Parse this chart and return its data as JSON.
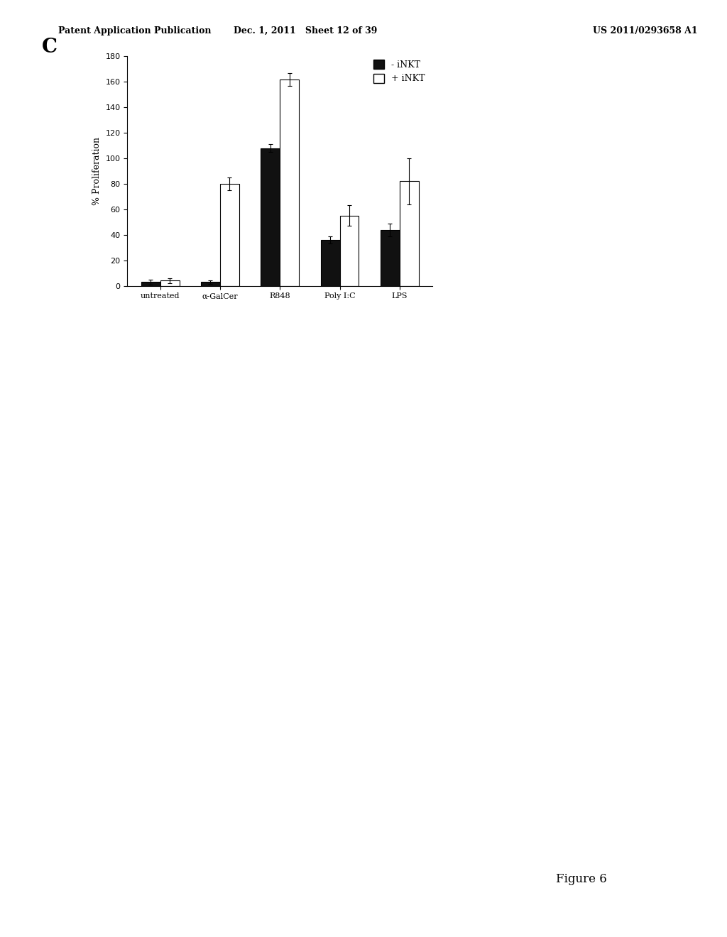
{
  "categories": [
    "untreated",
    "α-GalCer",
    "R848",
    "Poly I:C",
    "LPS"
  ],
  "minus_inkt": [
    3,
    3,
    108,
    36,
    44
  ],
  "plus_inkt": [
    4,
    80,
    162,
    55,
    82
  ],
  "minus_inkt_err": [
    2,
    1.5,
    3,
    3,
    5
  ],
  "plus_inkt_err": [
    2,
    5,
    5,
    8,
    18
  ],
  "ylabel": "% Proliferation",
  "ylim": [
    0,
    180
  ],
  "yticks": [
    0,
    20,
    40,
    60,
    80,
    100,
    120,
    140,
    160,
    180
  ],
  "bar_width": 0.32,
  "minus_color": "#111111",
  "plus_color": "#ffffff",
  "edge_color": "#000000",
  "label_C": "C",
  "legend_minus": "- iNKT",
  "legend_plus": "+ iNKT",
  "header_left": "Patent Application Publication",
  "header_mid": "Dec. 1, 2011   Sheet 12 of 39",
  "header_right": "US 2011/0293658 A1",
  "footer": "Figure 6",
  "fig_width": 10.24,
  "fig_height": 13.2,
  "dpi": 100
}
